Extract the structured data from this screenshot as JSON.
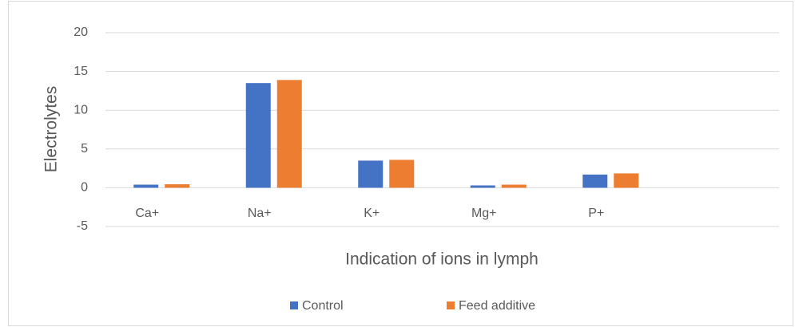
{
  "chart_data": {
    "type": "bar",
    "x_label": "Indication of ions in lymph",
    "y_label": "Electrolytes",
    "categories": [
      "Ca+",
      "Na+",
      "K+",
      "Mg+",
      "P+",
      null
    ],
    "series": [
      {
        "name": "Control",
        "color": "#4472c4",
        "values": [
          0.4,
          13.5,
          3.5,
          0.3,
          1.7,
          null
        ]
      },
      {
        "name": "Feed additive",
        "color": "#ed7d31",
        "values": [
          0.45,
          13.9,
          3.6,
          0.4,
          1.85,
          null
        ]
      }
    ],
    "ylim": [
      -5,
      20
    ],
    "yticks": [
      -5,
      0,
      5,
      10,
      15,
      20
    ],
    "grid": true,
    "legend": "bottom"
  }
}
